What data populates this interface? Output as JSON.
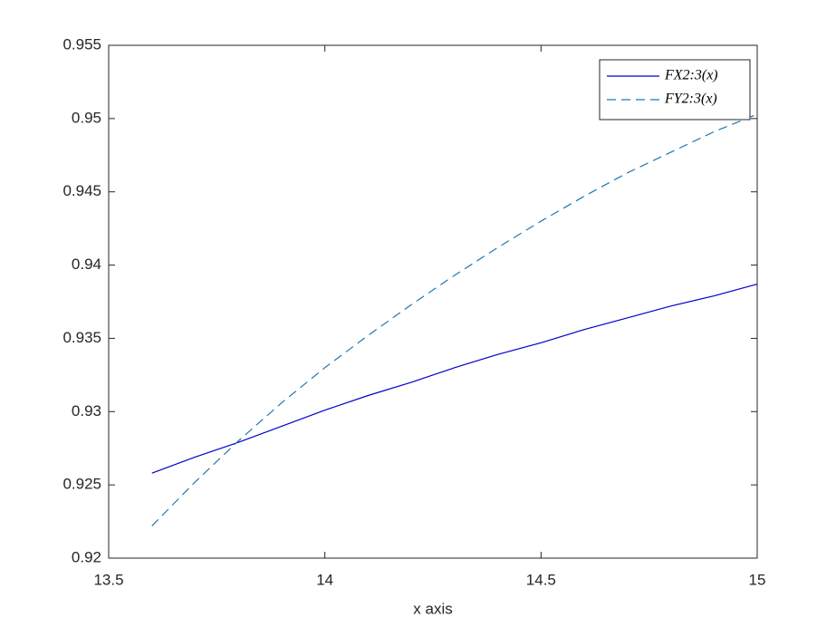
{
  "chart_data": {
    "type": "line",
    "xlabel": "x axis",
    "x": [
      13.6,
      13.7,
      13.8,
      13.9,
      14.0,
      14.1,
      14.2,
      14.3,
      14.4,
      14.5,
      14.6,
      14.7,
      14.8,
      14.9,
      15.0
    ],
    "series": [
      {
        "name": "FX2:3(x)",
        "color": "#0000cd",
        "dash": false,
        "values": [
          0.9258,
          0.9269,
          0.9279,
          0.929,
          0.9301,
          0.9311,
          0.932,
          0.933,
          0.9339,
          0.9347,
          0.9356,
          0.9364,
          0.9372,
          0.9379,
          0.9387
        ]
      },
      {
        "name": "FY2:3(x)",
        "color": "#1f78b4",
        "dash": true,
        "values": [
          0.9222,
          0.9252,
          0.928,
          0.9306,
          0.933,
          0.9352,
          0.9373,
          0.9393,
          0.9412,
          0.943,
          0.9447,
          0.9463,
          0.9477,
          0.9491,
          0.9503
        ]
      }
    ],
    "xlim": [
      13.5,
      15
    ],
    "xticks": [
      13.5,
      14,
      14.5,
      15
    ],
    "ylim": [
      0.92,
      0.955
    ],
    "yticks": [
      0.92,
      0.925,
      0.93,
      0.935,
      0.94,
      0.945,
      0.95,
      0.955
    ],
    "grid": false,
    "legend": "northeast"
  }
}
